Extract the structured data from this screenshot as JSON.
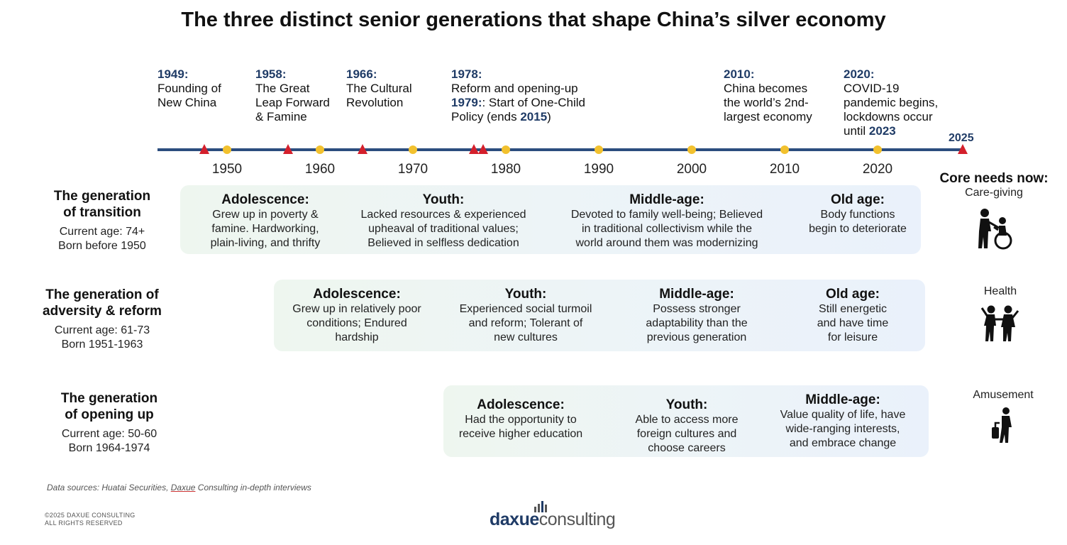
{
  "title": "The three distinct senior generations that shape China’s silver economy",
  "events": [
    {
      "year": "1949:",
      "text": [
        "Founding of",
        "New China"
      ]
    },
    {
      "year": "1958:",
      "text": [
        "The Great",
        "Leap Forward",
        "& Famine"
      ]
    },
    {
      "year": "1966:",
      "text": [
        "The Cultural",
        "Revolution"
      ]
    },
    {
      "year": "1978:",
      "line1": "Reform and opening-up",
      "year2": "1979:",
      "line2": ": Start of One-Child",
      "line3a": "Policy (ends ",
      "year3": "2015",
      "line3b": ")"
    },
    {
      "year": "2010:",
      "text": [
        "China becomes",
        "the world’s 2nd-",
        "largest economy"
      ]
    },
    {
      "year": "2020:",
      "text": [
        "COVID-19",
        "pandemic begins,",
        "lockdowns occur"
      ],
      "until": "until ",
      "until_year": "2023"
    }
  ],
  "timeline": {
    "end_label": "2025",
    "ticks": [
      "1950",
      "1960",
      "1970",
      "1980",
      "1990",
      "2000",
      "2010",
      "2020"
    ],
    "tick_years": [
      1950,
      1960,
      1970,
      1980,
      1990,
      2000,
      2010,
      2020
    ],
    "event_years": [
      1949,
      1958,
      1966,
      1978,
      1979,
      2025
    ],
    "axis_color": "#2c4d7e",
    "dot_color": "#f2c12e",
    "event_color": "#d4202c"
  },
  "generations": [
    {
      "name": [
        "The generation",
        "of transition"
      ],
      "age": "Current age: 74+",
      "born": "Born before 1950",
      "phases": [
        {
          "title": "Adolescence:",
          "desc": [
            "Grew up in poverty &",
            "famine. Hardworking,",
            "plain-living, and thrifty"
          ]
        },
        {
          "title": "Youth:",
          "desc": [
            "Lacked resources & experienced",
            "upheaval of traditional values;",
            "Believed in selfless dedication"
          ]
        },
        {
          "title": "Middle-age:",
          "desc": [
            "Devoted to family well-being; Believed",
            "in traditional collectivism while the",
            "world around them was modernizing"
          ]
        },
        {
          "title": "Old age:",
          "desc": [
            "Body functions",
            "begin to deteriorate"
          ]
        }
      ]
    },
    {
      "name": [
        "The generation of",
        "adversity & reform"
      ],
      "age": "Current age: 61-73",
      "born": "Born 1951-1963",
      "phases": [
        {
          "title": "Adolescence:",
          "desc": [
            "Grew up in relatively poor",
            "conditions; Endured",
            "hardship"
          ]
        },
        {
          "title": "Youth:",
          "desc": [
            "Experienced social turmoil",
            "and reform; Tolerant of",
            "new cultures"
          ]
        },
        {
          "title": "Middle-age:",
          "desc": [
            "Possess stronger",
            "adaptability than the",
            "previous generation"
          ]
        },
        {
          "title": "Old age:",
          "desc": [
            "Still energetic",
            "and have time",
            "for leisure"
          ]
        }
      ]
    },
    {
      "name": [
        "The generation",
        "of opening up"
      ],
      "age": "Current age: 50-60",
      "born": "Born 1964-1974",
      "phases": [
        {
          "title": "Adolescence:",
          "desc": [
            "Had the opportunity to",
            "receive higher education"
          ]
        },
        {
          "title": "Youth:",
          "desc": [
            "Able to access more",
            "foreign cultures and",
            "choose careers"
          ]
        },
        {
          "title": "Middle-age:",
          "desc": [
            "Value quality of life, have",
            "wide-ranging interests,",
            "and embrace change"
          ]
        }
      ]
    }
  ],
  "core_needs": {
    "title": "Core needs now:",
    "items": [
      {
        "label": "Care-giving",
        "icon": "caregiving-icon"
      },
      {
        "label": "Health",
        "icon": "health-icon"
      },
      {
        "label": "Amusement",
        "icon": "amusement-icon"
      }
    ]
  },
  "footer": {
    "source_prefix": "Data sources: Huatai Securities, ",
    "source_link": "Daxue",
    "source_suffix": " Consulting in-depth interviews",
    "copyright": [
      "©2025 DAXUE CONSULTING",
      "ALL RIGHTS RESERVED"
    ],
    "logo_bold": "daxue",
    "logo_rest": "consulting"
  }
}
